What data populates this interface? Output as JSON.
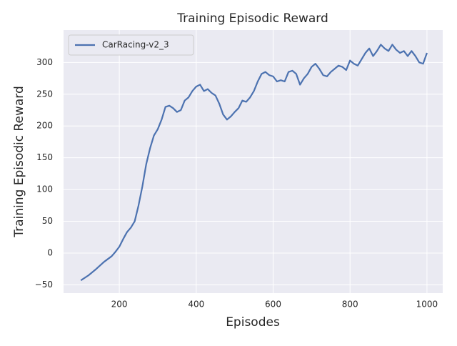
{
  "chart_data": {
    "type": "line",
    "title": "Training Episodic Reward",
    "x_label": "Episodes",
    "y_label": "Training Episodic Reward",
    "x": [
      100,
      120,
      140,
      160,
      180,
      190,
      200,
      210,
      220,
      230,
      240,
      250,
      260,
      270,
      280,
      290,
      300,
      310,
      320,
      330,
      340,
      350,
      360,
      370,
      380,
      390,
      400,
      410,
      420,
      430,
      440,
      450,
      460,
      470,
      480,
      490,
      500,
      510,
      520,
      530,
      540,
      550,
      560,
      570,
      580,
      590,
      600,
      610,
      620,
      630,
      640,
      650,
      660,
      670,
      680,
      690,
      700,
      710,
      720,
      730,
      740,
      750,
      760,
      770,
      780,
      790,
      800,
      810,
      820,
      830,
      840,
      850,
      860,
      870,
      880,
      890,
      900,
      910,
      920,
      930,
      940,
      950,
      960,
      970,
      980,
      990,
      1000
    ],
    "series": [
      {
        "name": "CarRacing-v2_3",
        "color": "#4c72b0",
        "values": [
          -43,
          -35,
          -25,
          -14,
          -5,
          2,
          10,
          22,
          33,
          40,
          50,
          75,
          105,
          140,
          165,
          185,
          195,
          210,
          230,
          232,
          228,
          222,
          225,
          240,
          245,
          255,
          262,
          265,
          255,
          258,
          252,
          248,
          235,
          218,
          210,
          215,
          222,
          228,
          240,
          238,
          245,
          255,
          270,
          282,
          285,
          280,
          278,
          270,
          272,
          270,
          285,
          287,
          282,
          265,
          275,
          282,
          293,
          298,
          290,
          280,
          278,
          285,
          290,
          295,
          293,
          288,
          303,
          298,
          295,
          305,
          315,
          322,
          310,
          318,
          328,
          322,
          318,
          328,
          320,
          315,
          318,
          310,
          318,
          310,
          300,
          298,
          315
        ]
      }
    ],
    "xlim": [
      55,
      1041
    ],
    "ylim": [
      -63,
      351
    ],
    "xticks": [
      200,
      400,
      600,
      800,
      1000
    ],
    "yticks": [
      {
        "value": -50,
        "label": "−50"
      },
      0,
      50,
      100,
      150,
      200,
      250,
      300
    ],
    "grid": true,
    "legend": "upper left"
  }
}
